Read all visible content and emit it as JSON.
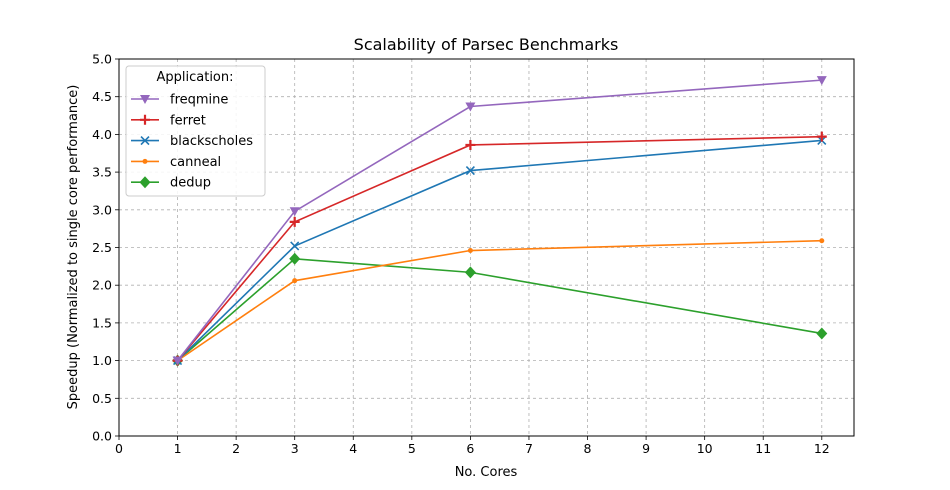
{
  "chart_data": {
    "type": "line",
    "title": "Scalability of Parsec Benchmarks",
    "xlabel": "No. Cores",
    "ylabel": "Speedup (Normalized to single core performance)",
    "x": [
      1,
      3,
      6,
      12
    ],
    "xlim": [
      0,
      12.55
    ],
    "ylim": [
      0,
      5.0
    ],
    "xticks": [
      "0",
      "1",
      "2",
      "3",
      "4",
      "5",
      "6",
      "7",
      "8",
      "9",
      "10",
      "11",
      "12"
    ],
    "yticks": [
      "0.0",
      "0.5",
      "1.0",
      "1.5",
      "2.0",
      "2.5",
      "3.0",
      "3.5",
      "4.0",
      "4.5",
      "5.0"
    ],
    "grid": true,
    "legend": {
      "title": "Application:",
      "placement": "top-left"
    },
    "series": [
      {
        "name": "freqmine",
        "values": [
          1.0,
          2.98,
          4.37,
          4.72
        ],
        "color": "#9467bd",
        "marker": "triangle-down"
      },
      {
        "name": "ferret",
        "values": [
          1.0,
          2.84,
          3.86,
          3.97
        ],
        "color": "#d62728",
        "marker": "plus"
      },
      {
        "name": "blackscholes",
        "values": [
          1.0,
          2.52,
          3.52,
          3.92
        ],
        "color": "#1f77b4",
        "marker": "x"
      },
      {
        "name": "canneal",
        "values": [
          1.0,
          2.06,
          2.46,
          2.59
        ],
        "color": "#ff7f0e",
        "marker": "dot"
      },
      {
        "name": "dedup",
        "values": [
          1.0,
          2.35,
          2.17,
          1.36
        ],
        "color": "#2ca02c",
        "marker": "diamond"
      }
    ]
  }
}
